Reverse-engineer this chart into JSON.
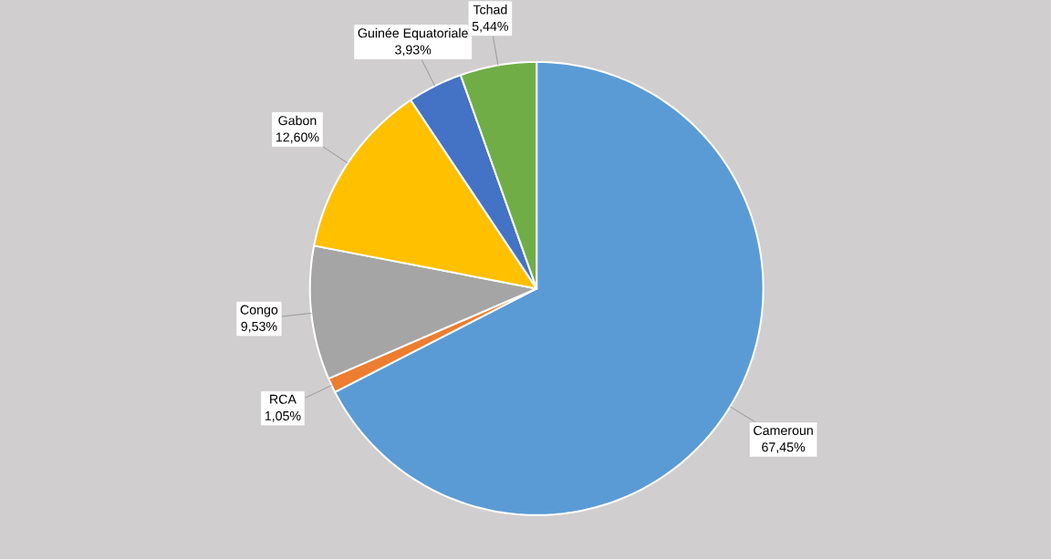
{
  "chart_data": {
    "type": "pie",
    "categories": [
      "Cameroun",
      "RCA",
      "Congo",
      "Gabon",
      "Guinée Equatoriale",
      "Tchad"
    ],
    "values": [
      67.45,
      1.05,
      9.53,
      12.6,
      3.93,
      5.44
    ],
    "value_labels": [
      "67,45%",
      "1,05%",
      "9,53%",
      "12,60%",
      "3,93%",
      "5,44%"
    ],
    "colors": [
      "#5b9bd5",
      "#ed7d31",
      "#a5a5a5",
      "#ffc000",
      "#4472c4",
      "#70ad47"
    ]
  }
}
